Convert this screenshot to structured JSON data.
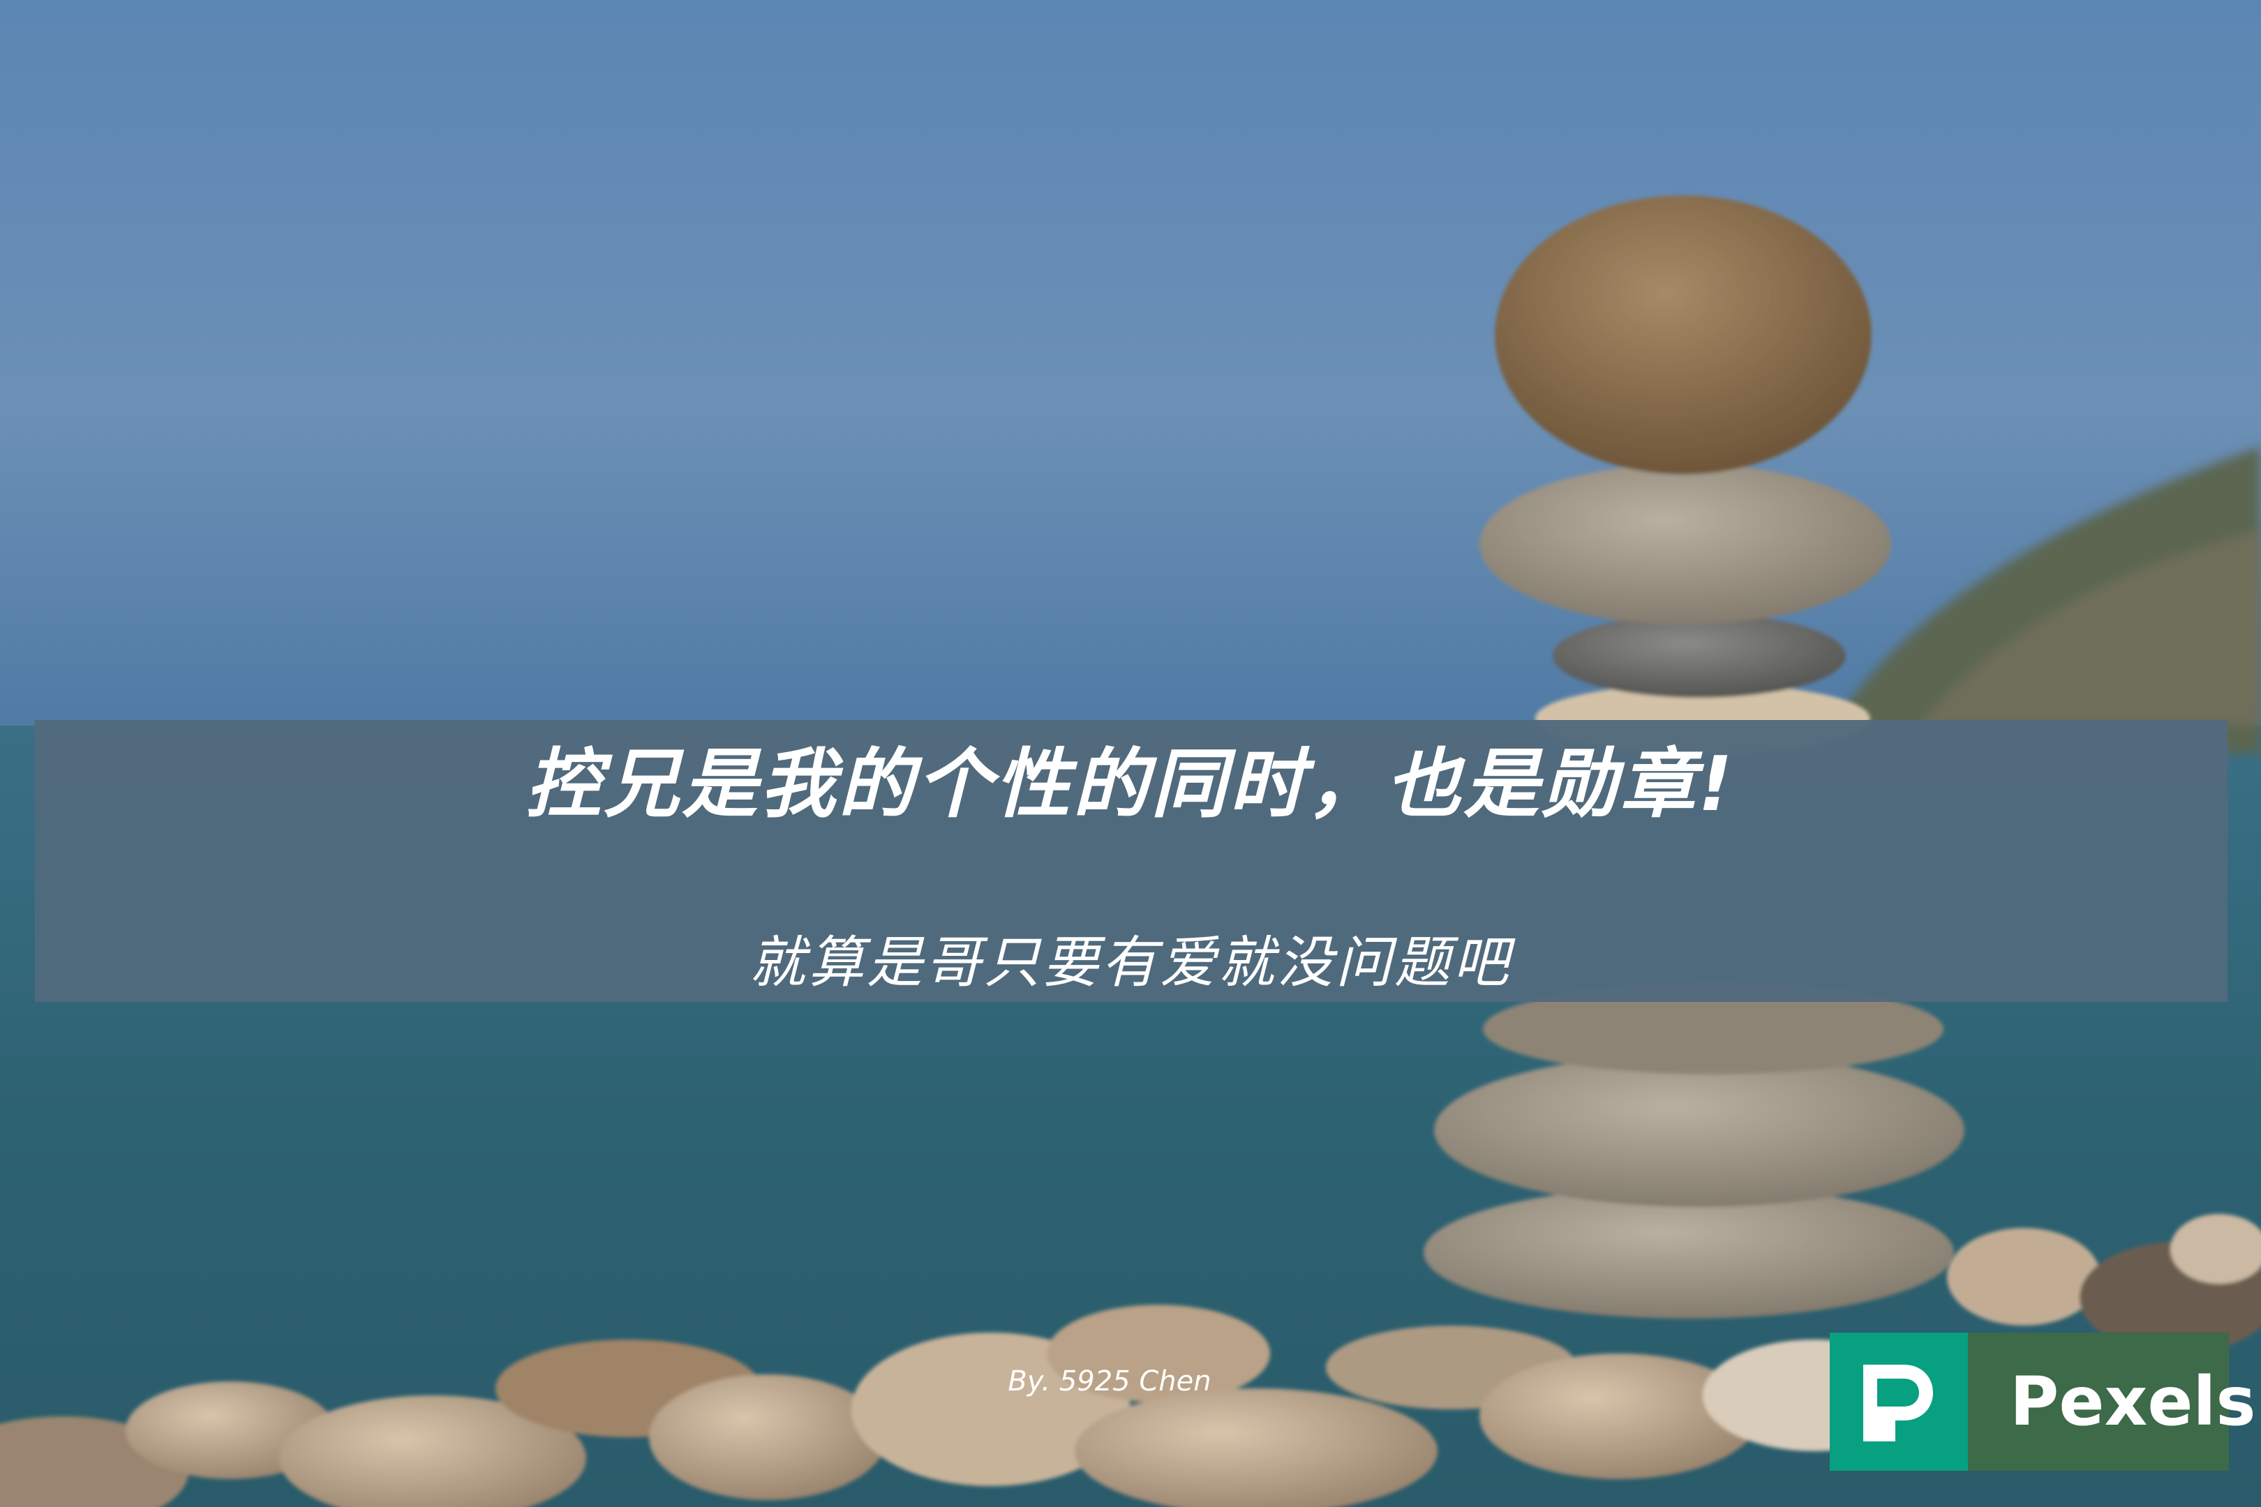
{
  "headline": "控兄是我的个性的同时，也是勋章!",
  "subline": "就算是哥只要有爱就没问题吧",
  "credit": "By. 5925 Chen",
  "badge": {
    "brand": "Pexels",
    "tile_color": "#07a081",
    "bar_color": "#3d6a49"
  },
  "colors": {
    "banner": "#526a7d",
    "sky": "#5f89b6",
    "sea": "#2d5f70"
  }
}
